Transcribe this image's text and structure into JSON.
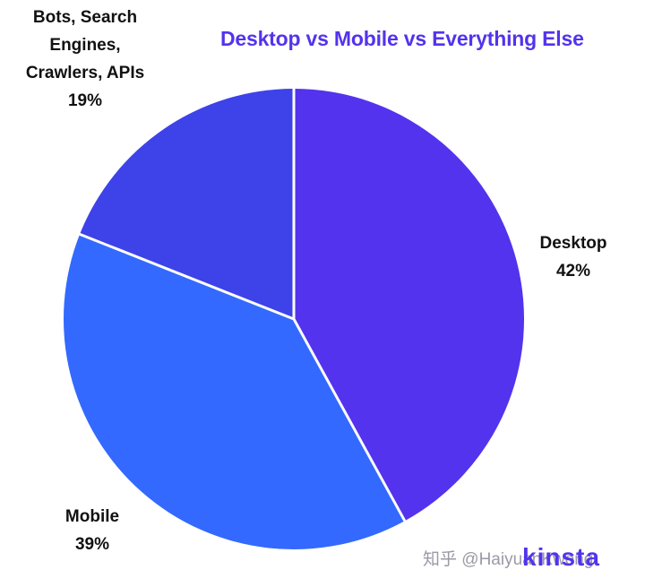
{
  "chart_data": {
    "type": "pie",
    "title": "Desktop vs Mobile vs Everything Else",
    "categories": [
      "Desktop",
      "Mobile",
      "Bots, Search Engines, Crawlers, APIs"
    ],
    "values": [
      42,
      39,
      19
    ],
    "labels": {
      "desktop": {
        "name": "Desktop",
        "pct": "42%"
      },
      "mobile": {
        "name": "Mobile",
        "pct": "39%"
      },
      "bots": {
        "name": "Bots, Search\nEngines,\nCrawlers, APIs",
        "pct": "19%"
      }
    },
    "colors": [
      "#5333ed",
      "#3369fe",
      "#3e42e9"
    ],
    "start_angle": "12 o'clock",
    "direction": "clockwise"
  },
  "watermark": "知乎 @HaiyuanKwong",
  "logo": "kinsta",
  "colors": {
    "title": "#5333ed",
    "slice_border": "#ffffff"
  }
}
